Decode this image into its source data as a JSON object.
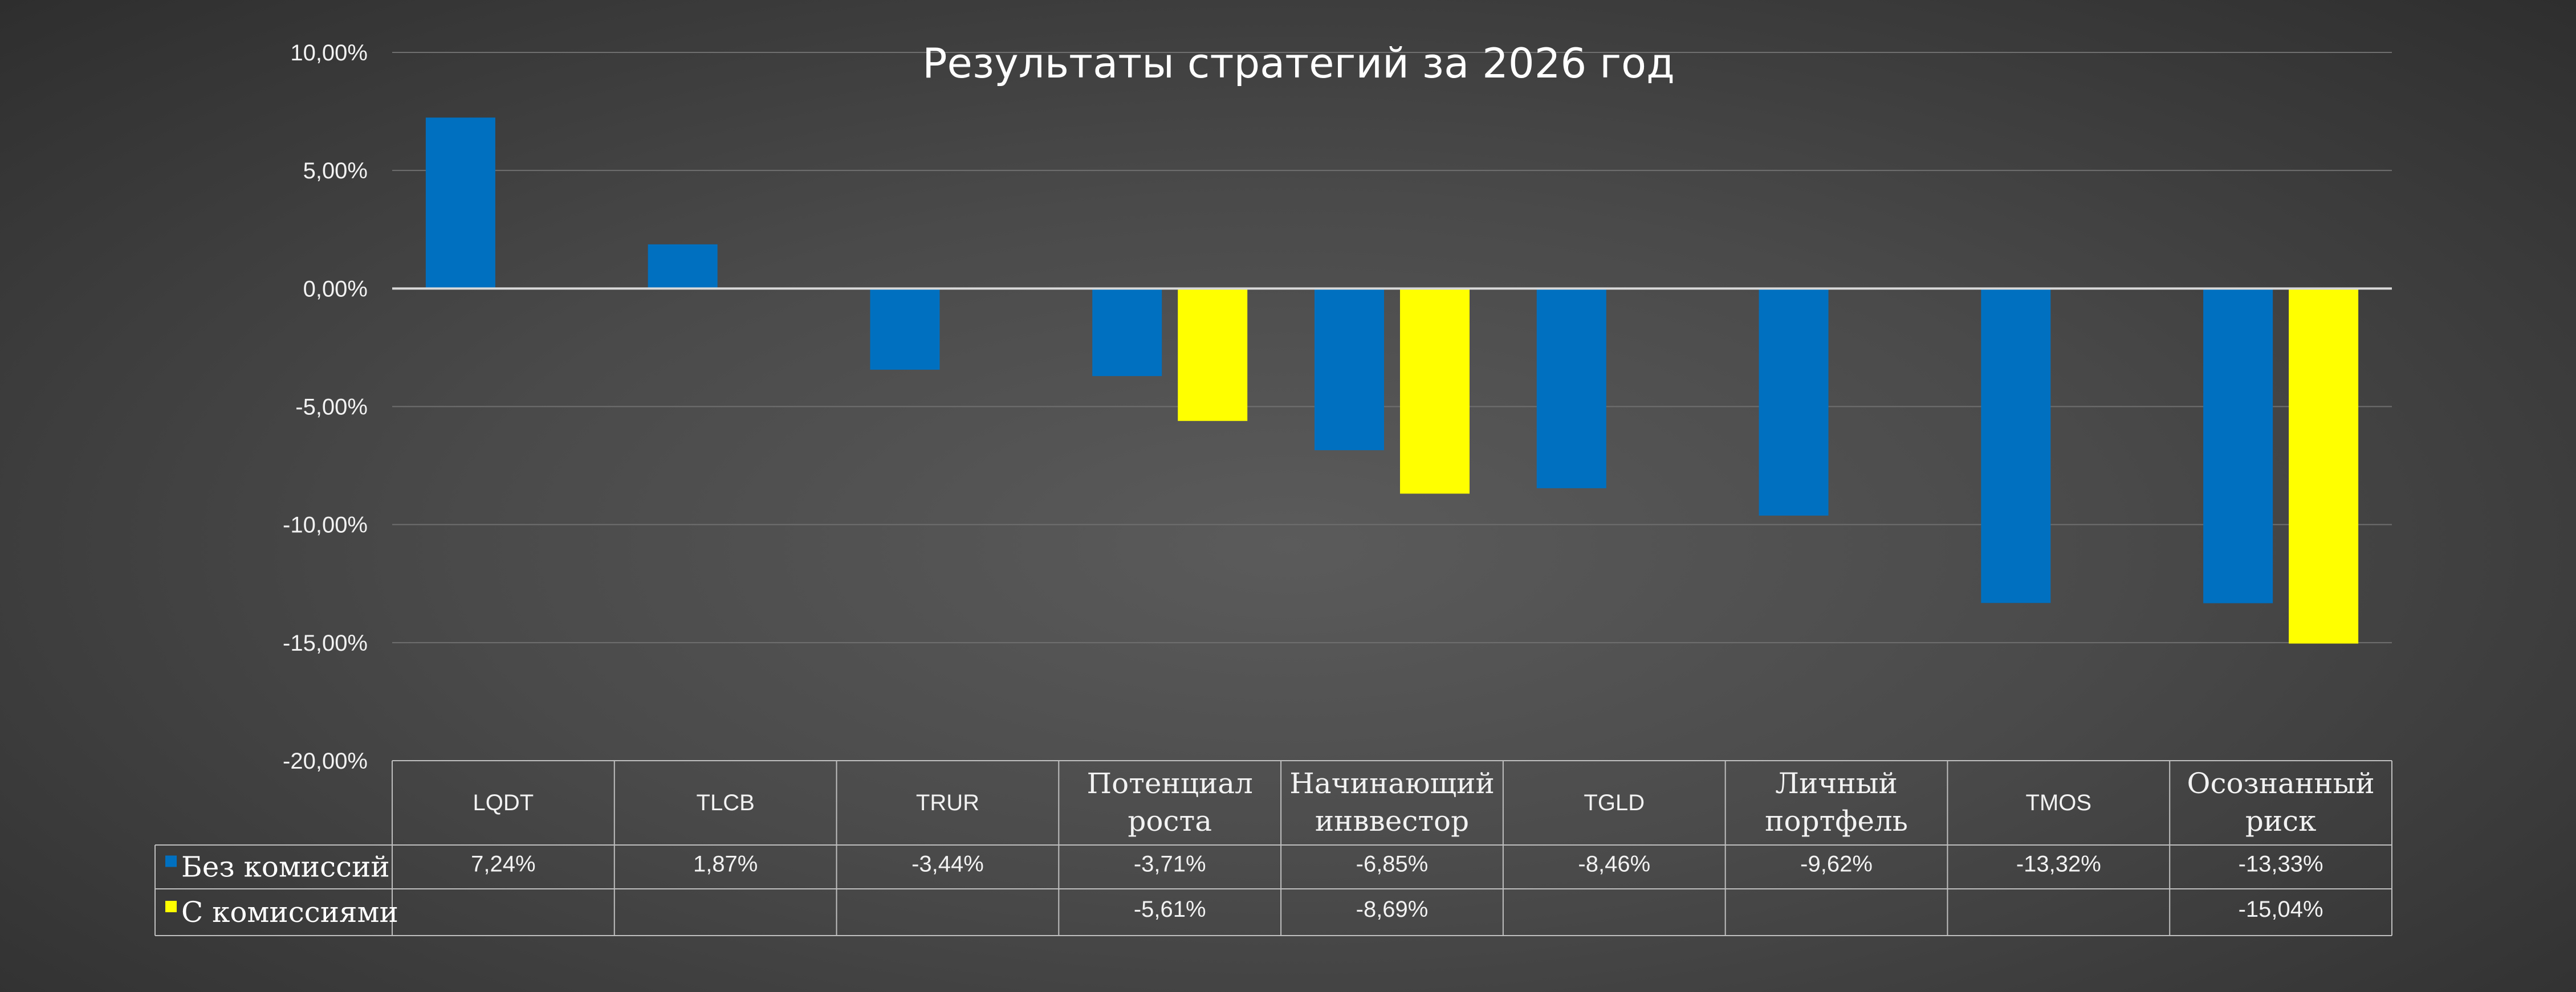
{
  "chart_data": {
    "type": "bar",
    "title": "Результаты стратегий за 2026 год",
    "categories": [
      [
        "LQDT"
      ],
      [
        "TLCB"
      ],
      [
        "TRUR"
      ],
      [
        "Потенциал",
        "роста"
      ],
      [
        "Начинающий",
        "инввестор"
      ],
      [
        "TGLD"
      ],
      [
        "Личный",
        "портфель"
      ],
      [
        "TMOS"
      ],
      [
        "Осознанный",
        "риск"
      ]
    ],
    "series": [
      {
        "name": "Без комиссий",
        "color": "#0070c0",
        "values": [
          7.24,
          1.87,
          -3.44,
          -3.71,
          -6.85,
          -8.46,
          -9.62,
          -13.32,
          -13.33
        ],
        "labels": [
          "7,24%",
          "1,87%",
          "-3,44%",
          "-3,71%",
          "-6,85%",
          "-8,46%",
          "-9,62%",
          "-13,32%",
          "-13,33%"
        ]
      },
      {
        "name": "С комиссиями",
        "color": "#ffff00",
        "values": [
          null,
          null,
          null,
          -5.61,
          -8.69,
          null,
          null,
          null,
          -15.04
        ],
        "labels": [
          "",
          "",
          "",
          "-5,61%",
          "-8,69%",
          "",
          "",
          "",
          "-15,04%"
        ]
      }
    ],
    "ylim": [
      -20,
      10
    ],
    "yticks": [
      10,
      5,
      0,
      -5,
      -10,
      -15,
      -20
    ],
    "ytick_labels": [
      "10,00%",
      "5,00%",
      "0,00%",
      "-5,00%",
      "-10,00%",
      "-15,00%",
      "-20,00%"
    ],
    "grid": true,
    "legend": "data-table"
  }
}
